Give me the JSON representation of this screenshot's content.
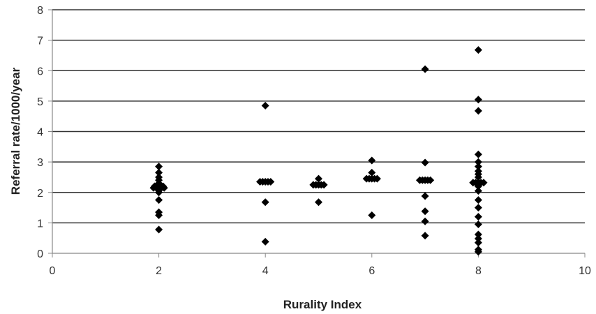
{
  "chart_data": {
    "type": "scatter",
    "title": "",
    "xlabel": "Rurality Index",
    "ylabel": "Referral  rate/1000/year",
    "xlim": [
      0,
      10
    ],
    "ylim": [
      0,
      8
    ],
    "x_ticks": [
      "0",
      "2",
      "4",
      "6",
      "8",
      "10"
    ],
    "y_ticks": [
      "0",
      "1",
      "2",
      "3",
      "4",
      "5",
      "6",
      "7",
      "8"
    ],
    "grid": "horizontal",
    "legend": "none",
    "marker": "diamond",
    "colors": {
      "marker": "#000000",
      "grid": "#333333",
      "axis": "#888888"
    },
    "series": [
      {
        "points": [
          [
            2,
            0.78
          ],
          [
            2,
            1.25
          ],
          [
            2,
            1.35
          ],
          [
            2,
            1.75
          ],
          [
            2,
            2.0
          ],
          [
            2,
            2.1
          ],
          [
            2,
            2.15
          ],
          [
            2,
            2.2
          ],
          [
            2,
            2.3
          ],
          [
            2,
            2.4
          ],
          [
            2,
            2.5
          ],
          [
            2,
            2.65
          ],
          [
            2,
            2.85
          ],
          [
            1.9,
            2.15
          ],
          [
            1.95,
            2.15
          ],
          [
            2.05,
            2.15
          ],
          [
            2.1,
            2.15
          ],
          [
            1.92,
            2.2
          ],
          [
            2.08,
            2.2
          ],
          [
            4,
            0.38
          ],
          [
            4,
            1.68
          ],
          [
            4,
            4.85
          ],
          [
            3.9,
            2.35
          ],
          [
            3.95,
            2.35
          ],
          [
            4.0,
            2.35
          ],
          [
            4.05,
            2.35
          ],
          [
            4.1,
            2.35
          ],
          [
            5,
            1.68
          ],
          [
            5,
            2.45
          ],
          [
            4.9,
            2.25
          ],
          [
            4.95,
            2.25
          ],
          [
            5.0,
            2.25
          ],
          [
            5.05,
            2.25
          ],
          [
            5.1,
            2.25
          ],
          [
            6,
            1.25
          ],
          [
            6,
            2.65
          ],
          [
            6,
            3.05
          ],
          [
            5.9,
            2.45
          ],
          [
            5.95,
            2.45
          ],
          [
            6.0,
            2.45
          ],
          [
            6.05,
            2.45
          ],
          [
            6.1,
            2.45
          ],
          [
            7,
            0.58
          ],
          [
            7,
            1.05
          ],
          [
            7,
            1.38
          ],
          [
            7,
            1.88
          ],
          [
            7,
            2.98
          ],
          [
            7,
            6.05
          ],
          [
            6.9,
            2.4
          ],
          [
            6.95,
            2.4
          ],
          [
            7.0,
            2.4
          ],
          [
            7.05,
            2.4
          ],
          [
            7.1,
            2.4
          ],
          [
            8,
            0.05
          ],
          [
            8,
            0.12
          ],
          [
            8,
            0.35
          ],
          [
            8,
            0.48
          ],
          [
            8,
            0.62
          ],
          [
            8,
            0.95
          ],
          [
            8,
            1.2
          ],
          [
            8,
            1.5
          ],
          [
            8,
            1.75
          ],
          [
            8,
            2.05
          ],
          [
            8,
            2.2
          ],
          [
            8,
            2.5
          ],
          [
            8,
            2.6
          ],
          [
            8,
            2.7
          ],
          [
            8,
            2.85
          ],
          [
            8,
            3.0
          ],
          [
            8,
            3.25
          ],
          [
            8,
            4.68
          ],
          [
            8,
            5.05
          ],
          [
            8,
            6.68
          ],
          [
            7.9,
            2.32
          ],
          [
            7.95,
            2.32
          ],
          [
            8.0,
            2.32
          ],
          [
            8.05,
            2.32
          ],
          [
            8.1,
            2.32
          ]
        ]
      }
    ]
  }
}
